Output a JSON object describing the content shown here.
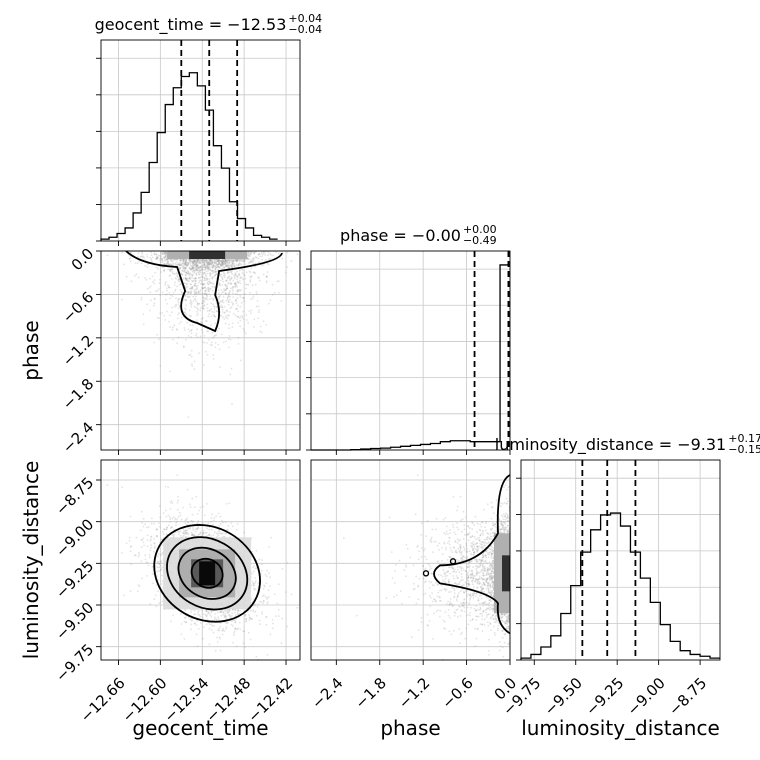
{
  "chart_data": {
    "type": "corner",
    "parameters": [
      "geocent_time",
      "phase",
      "luminosity_distance"
    ],
    "ranges": {
      "geocent_time": [
        -12.685,
        -12.4
      ],
      "phase": [
        -2.75,
        0.0
      ],
      "luminosity_distance": [
        -9.83,
        -8.63
      ]
    },
    "ticks": {
      "geocent_time": [
        "-12.66",
        "-12.60",
        "-12.54",
        "-12.48",
        "-12.42"
      ],
      "phase": [
        "-2.4",
        "-1.8",
        "-1.2",
        "-0.6",
        "0.0"
      ],
      "luminosity_distance": [
        "-9.75",
        "-9.50",
        "-9.25",
        "-9.00",
        "-8.75"
      ]
    },
    "tick_values": {
      "geocent_time": [
        -12.66,
        -12.6,
        -12.54,
        -12.48,
        -12.42
      ],
      "phase": [
        -2.4,
        -1.8,
        -1.2,
        -0.6,
        0.0
      ],
      "luminosity_distance": [
        -9.75,
        -9.5,
        -9.25,
        -9.0,
        -8.75
      ]
    },
    "titles": [
      {
        "param": "geocent_time",
        "text": "geocent_time = −12.53",
        "plus": "+0.04",
        "minus": "−0.04"
      },
      {
        "param": "phase",
        "text": "phase = −0.00",
        "plus": "+0.00",
        "minus": "−0.49"
      },
      {
        "param": "luminosity_distance",
        "text": "luminosity_distance = −9.31",
        "plus": "+0.17",
        "minus": "−0.15"
      }
    ],
    "quantiles": {
      "geocent_time": [
        -12.57,
        -12.53,
        -12.49
      ],
      "phase": [
        -0.49,
        0.0,
        0.0
      ],
      "luminosity_distance": [
        -9.46,
        -9.31,
        -9.14
      ]
    },
    "histograms": {
      "geocent_time": {
        "bin_start": -12.685,
        "bin_width": 0.0115,
        "counts": [
          0.01,
          0.02,
          0.04,
          0.07,
          0.15,
          0.26,
          0.42,
          0.58,
          0.73,
          0.82,
          0.88,
          0.9,
          0.83,
          0.7,
          0.51,
          0.39,
          0.21,
          0.12,
          0.07,
          0.03,
          0.02,
          0.01
        ]
      },
      "phase": {
        "bin_start": -2.75,
        "bin_width": 0.1375,
        "counts": [
          0.0,
          0.0,
          0.0,
          0.0,
          0.002,
          0.005,
          0.008,
          0.01,
          0.015,
          0.02,
          0.025,
          0.03,
          0.035,
          0.045,
          0.05,
          0.05,
          0.045,
          0.045,
          0.045,
          1.0
        ]
      },
      "luminosity_distance": {
        "bin_start": -9.83,
        "bin_width": 0.06,
        "counts": [
          0.01,
          0.03,
          0.07,
          0.13,
          0.25,
          0.4,
          0.58,
          0.7,
          0.78,
          0.79,
          0.72,
          0.58,
          0.44,
          0.31,
          0.19,
          0.1,
          0.05,
          0.03,
          0.02,
          0.01
        ]
      }
    },
    "samples": {
      "geocent_time": {
        "mean": -12.533,
        "sd": 0.037
      },
      "phase": {
        "mode": 0.0,
        "scale": 0.45
      },
      "luminosity_distance": {
        "mean": -9.31,
        "sd": 0.155
      },
      "correlation_geocent_luminosity": -0.35
    },
    "grid": true
  }
}
